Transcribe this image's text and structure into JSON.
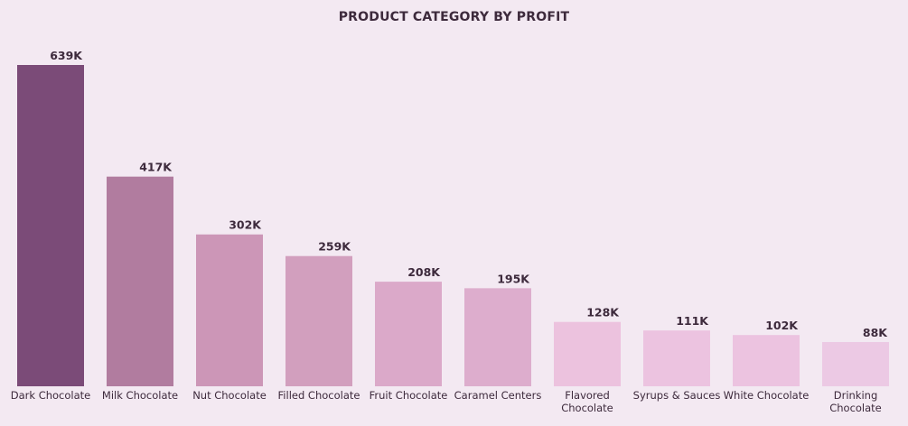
{
  "chart_data": {
    "type": "bar",
    "title": "PRODUCT CATEGORY BY PROFIT",
    "categories": [
      "Dark Chocolate",
      "Milk Chocolate",
      "Nut Chocolate",
      "Filled Chocolate",
      "Fruit Chocolate",
      "Caramel Centers",
      "Flavored Chocolate",
      "Syrups & Sauces",
      "White Chocolate",
      "Drinking Chocolate"
    ],
    "category_lines": [
      [
        "Dark Chocolate"
      ],
      [
        "Milk Chocolate"
      ],
      [
        "Nut Chocolate"
      ],
      [
        "Filled Chocolate"
      ],
      [
        "Fruit Chocolate"
      ],
      [
        "Caramel Centers"
      ],
      [
        "Flavored",
        "Chocolate"
      ],
      [
        "Syrups & Sauces"
      ],
      [
        "White Chocolate"
      ],
      [
        "Drinking",
        "Chocolate"
      ]
    ],
    "values": [
      639,
      417,
      302,
      259,
      208,
      195,
      128,
      111,
      102,
      88
    ],
    "data_labels": [
      "639K",
      "417K",
      "302K",
      "259K",
      "208K",
      "195K",
      "128K",
      "111K",
      "102K",
      "88K"
    ],
    "unit": "K",
    "ylim": [
      0,
      639
    ],
    "grid": false,
    "legend": "none",
    "colors": [
      "#7b4b78",
      "#b17c9f",
      "#cc96b7",
      "#d29fbe",
      "#dba9c9",
      "#ddadcd",
      "#ecc2de",
      "#ecc3e0",
      "#ecc3e0",
      "#ecc9e4"
    ]
  }
}
